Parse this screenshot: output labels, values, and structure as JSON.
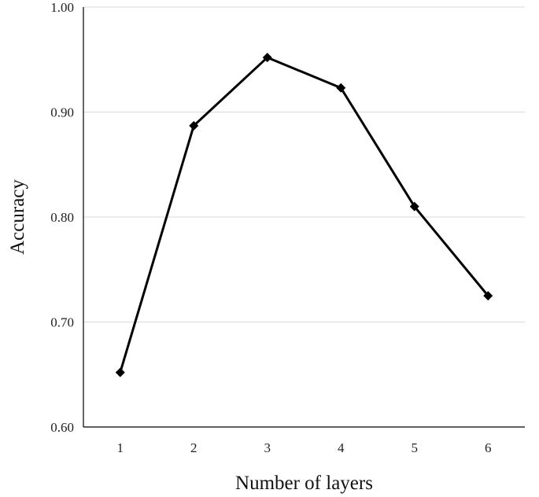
{
  "chart_data": {
    "type": "line",
    "title": "",
    "xlabel": "Number of layers",
    "ylabel": "Accuracy",
    "x": [
      1,
      2,
      3,
      4,
      5,
      6
    ],
    "x_tick_labels": [
      "1",
      "2",
      "3",
      "4",
      "5",
      "6"
    ],
    "y_tick_labels": [
      "0.60",
      "0.70",
      "0.80",
      "0.90",
      "1.00"
    ],
    "y_ticks": [
      0.6,
      0.7,
      0.8,
      0.9,
      1.0
    ],
    "ylim": [
      0.6,
      1.0
    ],
    "grid": "horizontal",
    "legend": "none",
    "series": [
      {
        "values": [
          0.652,
          0.887,
          0.952,
          0.923,
          0.81,
          0.725
        ],
        "color": "#000000",
        "marker": "diamond"
      }
    ]
  },
  "colors": {
    "gridline": "#d9d9d9",
    "axis": "#000000",
    "line": "#000000"
  }
}
